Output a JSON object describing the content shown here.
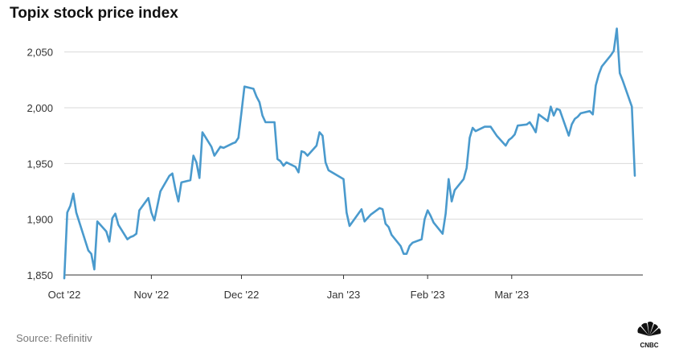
{
  "title": "Topix stock price index",
  "source": "Source: Refinitiv",
  "logo": "CNBC",
  "colors": {
    "line": "#4a9acd",
    "grid": "#d9d9d9",
    "axis": "#333333"
  },
  "chart_data": {
    "type": "line",
    "title": "Topix stock price index",
    "xlabel": "",
    "ylabel": "",
    "ylim": [
      1850,
      2075
    ],
    "yticks": [
      1850,
      1900,
      1950,
      2000,
      2050
    ],
    "ytick_labels": [
      "1,850",
      "1,900",
      "1,950",
      "2,000",
      "2,050"
    ],
    "xticks": [
      {
        "label": "Oct '22",
        "date": "2022-10-03"
      },
      {
        "label": "Nov '22",
        "date": "2022-11-01"
      },
      {
        "label": "Dec '22",
        "date": "2022-12-01"
      },
      {
        "label": "Jan '23",
        "date": "2023-01-04"
      },
      {
        "label": "Feb '23",
        "date": "2023-02-01"
      },
      {
        "label": "Mar '23",
        "date": "2023-03-01"
      }
    ],
    "grid": "horizontal",
    "series": [
      {
        "points": [
          [
            "2022-10-03",
            1847
          ],
          [
            "2022-10-04",
            1906
          ],
          [
            "2022-10-05",
            1912
          ],
          [
            "2022-10-06",
            1923
          ],
          [
            "2022-10-07",
            1906
          ],
          [
            "2022-10-11",
            1872
          ],
          [
            "2022-10-12",
            1869
          ],
          [
            "2022-10-13",
            1855
          ],
          [
            "2022-10-14",
            1898
          ],
          [
            "2022-10-17",
            1889
          ],
          [
            "2022-10-18",
            1880
          ],
          [
            "2022-10-19",
            1901
          ],
          [
            "2022-10-20",
            1905
          ],
          [
            "2022-10-21",
            1895
          ],
          [
            "2022-10-24",
            1882
          ],
          [
            "2022-10-25",
            1884
          ],
          [
            "2022-10-26",
            1885
          ],
          [
            "2022-10-27",
            1887
          ],
          [
            "2022-10-28",
            1908
          ],
          [
            "2022-10-31",
            1919
          ],
          [
            "2022-11-01",
            1906
          ],
          [
            "2022-11-02",
            1899
          ],
          [
            "2022-11-04",
            1925
          ],
          [
            "2022-11-07",
            1939
          ],
          [
            "2022-11-08",
            1941
          ],
          [
            "2022-11-09",
            1927
          ],
          [
            "2022-11-10",
            1916
          ],
          [
            "2022-11-11",
            1933
          ],
          [
            "2022-11-14",
            1935
          ],
          [
            "2022-11-15",
            1957
          ],
          [
            "2022-11-16",
            1951
          ],
          [
            "2022-11-17",
            1937
          ],
          [
            "2022-11-18",
            1978
          ],
          [
            "2022-11-21",
            1965
          ],
          [
            "2022-11-22",
            1957
          ],
          [
            "2022-11-24",
            1965
          ],
          [
            "2022-11-25",
            1964
          ],
          [
            "2022-11-28",
            1968
          ],
          [
            "2022-11-29",
            1969
          ],
          [
            "2022-11-30",
            1973
          ],
          [
            "2022-12-01",
            1996
          ],
          [
            "2022-12-02",
            2019
          ],
          [
            "2022-12-05",
            2017
          ],
          [
            "2022-12-06",
            2010
          ],
          [
            "2022-12-07",
            2005
          ],
          [
            "2022-12-08",
            1993
          ],
          [
            "2022-12-09",
            1987
          ],
          [
            "2022-12-12",
            1987
          ],
          [
            "2022-12-13",
            1954
          ],
          [
            "2022-12-14",
            1952
          ],
          [
            "2022-12-15",
            1948
          ],
          [
            "2022-12-16",
            1951
          ],
          [
            "2022-12-19",
            1947
          ],
          [
            "2022-12-20",
            1942
          ],
          [
            "2022-12-21",
            1961
          ],
          [
            "2022-12-22",
            1960
          ],
          [
            "2022-12-23",
            1957
          ],
          [
            "2022-12-26",
            1966
          ],
          [
            "2022-12-27",
            1978
          ],
          [
            "2022-12-28",
            1975
          ],
          [
            "2022-12-29",
            1951
          ],
          [
            "2022-12-30",
            1944
          ],
          [
            "2023-01-04",
            1936
          ],
          [
            "2023-01-05",
            1906
          ],
          [
            "2023-01-06",
            1894
          ],
          [
            "2023-01-10",
            1909
          ],
          [
            "2023-01-11",
            1898
          ],
          [
            "2023-01-12",
            1901
          ],
          [
            "2023-01-13",
            1904
          ],
          [
            "2023-01-16",
            1910
          ],
          [
            "2023-01-17",
            1909
          ],
          [
            "2023-01-18",
            1896
          ],
          [
            "2023-01-19",
            1893
          ],
          [
            "2023-01-20",
            1886
          ],
          [
            "2023-01-23",
            1876
          ],
          [
            "2023-01-24",
            1869
          ],
          [
            "2023-01-25",
            1869
          ],
          [
            "2023-01-26",
            1876
          ],
          [
            "2023-01-27",
            1879
          ],
          [
            "2023-01-30",
            1882
          ],
          [
            "2023-01-31",
            1900
          ],
          [
            "2023-02-01",
            1908
          ],
          [
            "2023-02-02",
            1903
          ],
          [
            "2023-02-03",
            1897
          ],
          [
            "2023-02-06",
            1887
          ],
          [
            "2023-02-07",
            1905
          ],
          [
            "2023-02-08",
            1936
          ],
          [
            "2023-02-09",
            1916
          ],
          [
            "2023-02-10",
            1926
          ],
          [
            "2023-02-13",
            1936
          ],
          [
            "2023-02-14",
            1946
          ],
          [
            "2023-02-15",
            1973
          ],
          [
            "2023-02-16",
            1982
          ],
          [
            "2023-02-17",
            1979
          ],
          [
            "2023-02-20",
            1983
          ],
          [
            "2023-02-21",
            1983
          ],
          [
            "2023-02-22",
            1983
          ],
          [
            "2023-02-24",
            1975
          ],
          [
            "2023-02-27",
            1966
          ],
          [
            "2023-02-28",
            1971
          ],
          [
            "2023-03-01",
            1973
          ],
          [
            "2023-03-02",
            1976
          ],
          [
            "2023-03-03",
            1984
          ],
          [
            "2023-03-06",
            1985
          ],
          [
            "2023-03-07",
            1987
          ],
          [
            "2023-03-08",
            1983
          ],
          [
            "2023-03-09",
            1978
          ],
          [
            "2023-03-10",
            1994
          ],
          [
            "2023-03-13",
            1988
          ],
          [
            "2023-03-14",
            2001
          ],
          [
            "2023-03-15",
            1993
          ],
          [
            "2023-03-16",
            1999
          ],
          [
            "2023-03-17",
            1998
          ],
          [
            "2023-03-20",
            1975
          ],
          [
            "2023-03-21",
            1985
          ],
          [
            "2023-03-22",
            1990
          ],
          [
            "2023-03-23",
            1992
          ],
          [
            "2023-03-24",
            1995
          ],
          [
            "2023-03-27",
            1997
          ],
          [
            "2023-03-28",
            1994
          ],
          [
            "2023-03-29",
            2020
          ],
          [
            "2023-03-30",
            2030
          ],
          [
            "2023-03-31",
            2037
          ],
          [
            "2023-04-03",
            2047
          ],
          [
            "2023-04-04",
            2051
          ],
          [
            "2023-04-05",
            2071
          ],
          [
            "2023-04-06",
            2031
          ],
          [
            "2023-04-07",
            2024
          ],
          [
            "2023-04-10",
            2001
          ],
          [
            "2023-04-11",
            1939
          ]
        ]
      }
    ]
  }
}
